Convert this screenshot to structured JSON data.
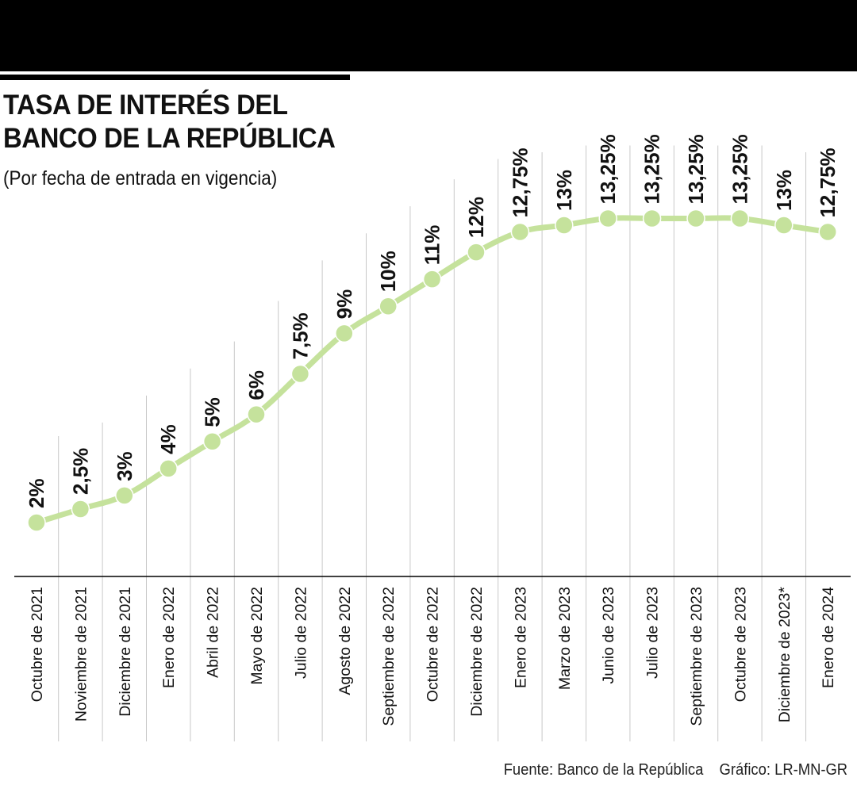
{
  "header": {
    "title": "TASA DE INTERÉS DEL\nBANCO DE LA REPÚBLICA",
    "subtitle": "(Por fecha de entrada en vigencia)"
  },
  "footer": {
    "source": "Fuente: Banco de la República",
    "credit": "Gráfico: LR-MN-GR"
  },
  "colors": {
    "line": "#c5e29c",
    "marker": "#c5e29c",
    "gridline": "#c8c8c8",
    "axis": "#000000",
    "text": "#111111"
  },
  "chart_data": {
    "type": "line",
    "title": "TASA DE INTERÉS DEL BANCO DE LA REPÚBLICA",
    "subtitle": "(Por fecha de entrada en vigencia)",
    "xlabel": "",
    "ylabel": "",
    "ylim": [
      0,
      15
    ],
    "grid": "vertical",
    "categories": [
      "Octubre de 2021",
      "Noviembre de 2021",
      "Diciembre de 2021",
      "Enero de 2022",
      "Abril de 2022",
      "Mayo de 2022",
      "Julio de 2022",
      "Agosto de 2022",
      "Septiembre de 2022",
      "Octubre de 2022",
      "Diciembre de 2022",
      "Enero de 2023",
      "Marzo de 2023",
      "Junio de 2023",
      "Julio de 2023",
      "Septiembre de 2023",
      "Octubre de 2023",
      "Diciembre de 2023*",
      "Enero de 2024"
    ],
    "series": [
      {
        "name": "Tasa de interés",
        "values": [
          2,
          2.5,
          3,
          4,
          5,
          6,
          7.5,
          9,
          10,
          11,
          12,
          12.75,
          13,
          13.25,
          13.25,
          13.25,
          13.25,
          13,
          12.75
        ]
      }
    ],
    "data_labels": [
      "2%",
      "2,5%",
      "3%",
      "4%",
      "5%",
      "6%",
      "7,5%",
      "9%",
      "10%",
      "11%",
      "12%",
      "12,75%",
      "13%",
      "13,25%",
      "13,25%",
      "13,25%",
      "13,25%",
      "13%",
      "12,75%"
    ]
  }
}
